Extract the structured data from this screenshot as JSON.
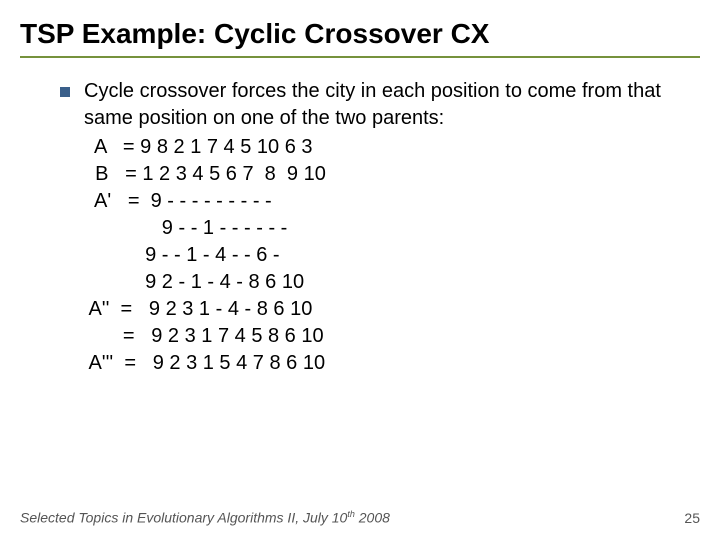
{
  "title": "TSP Example: Cyclic Crossover CX",
  "rule_color": "#76923c",
  "bullet_color": "#3a5f8a",
  "main_text": "Cycle crossover forces the city in each position to come from that same position on one of the two parents:",
  "lines": [
    "  A   = 9 8 2 1 7 4 5 10 6 3",
    "  B   = 1 2 3 4 5 6 7  8  9 10",
    "  A'   =  9 - - - - - - - - -",
    "              9 - - 1 - - - - - -",
    "           9 - - 1 - 4 - - 6 -",
    "           9 2 - 1 - 4 - 8 6 10",
    " A''  =   9 2 3 1 - 4 - 8 6 10",
    "       =   9 2 3 1 7 4 5 8 6 10",
    " A'''  =   9 2 3 1 5 4 7 8 6 10"
  ],
  "footer_course": "Selected Topics in Evolutionary Algorithms II, July 10",
  "footer_suffix": "th",
  "footer_year": " 2008",
  "page_number": "25"
}
